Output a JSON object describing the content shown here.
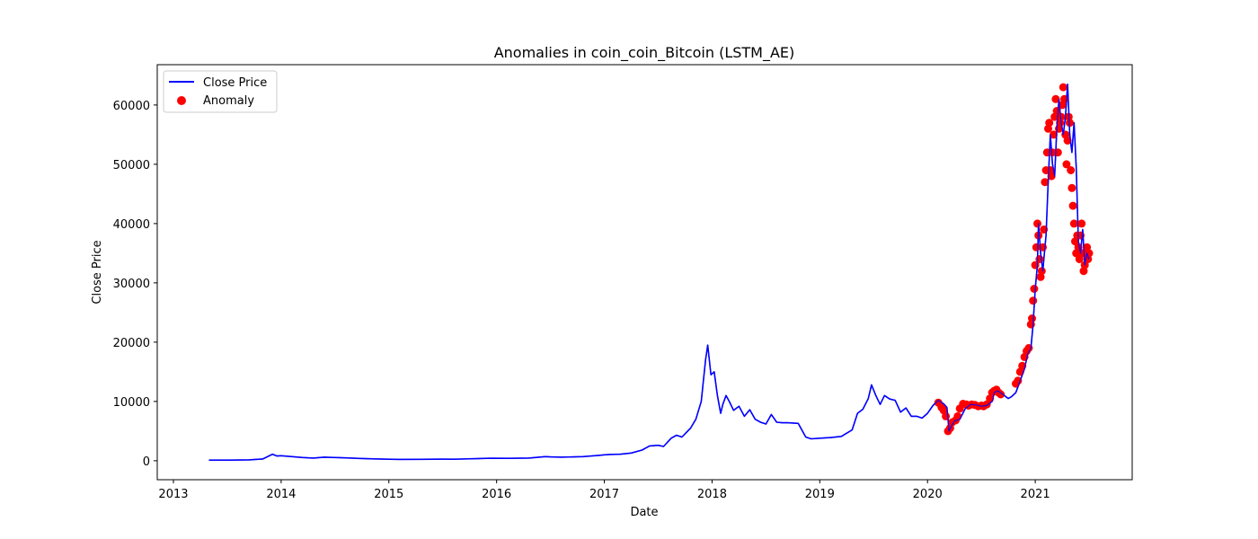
{
  "chart_data": {
    "type": "line",
    "title": "Anomalies in coin_coin_Bitcoin (LSTM_AE)",
    "xlabel": "Date",
    "ylabel": "Close Price",
    "xlim": [
      2012.85,
      2021.9
    ],
    "ylim": [
      -3200,
      66800
    ],
    "xticks": [
      2013,
      2014,
      2015,
      2016,
      2017,
      2018,
      2019,
      2020,
      2021
    ],
    "yticks": [
      0,
      10000,
      20000,
      30000,
      40000,
      50000,
      60000
    ],
    "grid": false,
    "legend": {
      "placement": "top-left",
      "entries": [
        {
          "label": "Close Price",
          "type": "line",
          "color": "#0000ff"
        },
        {
          "label": "Anomaly",
          "type": "marker",
          "color": "#ff0000"
        }
      ]
    },
    "series": [
      {
        "name": "Close Price",
        "type": "line",
        "color": "#0000ff",
        "x": [
          2013.33,
          2013.5,
          2013.7,
          2013.83,
          2013.92,
          2013.96,
          2014.0,
          2014.1,
          2014.2,
          2014.3,
          2014.4,
          2014.5,
          2014.6,
          2014.75,
          2014.9,
          2015.0,
          2015.1,
          2015.3,
          2015.5,
          2015.6,
          2015.8,
          2015.95,
          2016.1,
          2016.3,
          2016.45,
          2016.5,
          2016.6,
          2016.8,
          2016.95,
          2017.0,
          2017.05,
          2017.15,
          2017.25,
          2017.35,
          2017.42,
          2017.5,
          2017.55,
          2017.62,
          2017.67,
          2017.72,
          2017.8,
          2017.85,
          2017.9,
          2017.94,
          2017.96,
          2017.99,
          2018.02,
          2018.05,
          2018.08,
          2018.1,
          2018.13,
          2018.16,
          2018.2,
          2018.25,
          2018.3,
          2018.35,
          2018.4,
          2018.45,
          2018.5,
          2018.55,
          2018.6,
          2018.65,
          2018.7,
          2018.8,
          2018.87,
          2018.92,
          2019.0,
          2019.1,
          2019.2,
          2019.3,
          2019.35,
          2019.4,
          2019.45,
          2019.48,
          2019.52,
          2019.56,
          2019.6,
          2019.65,
          2019.7,
          2019.75,
          2019.8,
          2019.85,
          2019.9,
          2019.95,
          2020.0,
          2020.05,
          2020.1,
          2020.15,
          2020.18,
          2020.2,
          2020.22,
          2020.25,
          2020.3,
          2020.35,
          2020.4,
          2020.45,
          2020.5,
          2020.55,
          2020.6,
          2020.62,
          2020.65,
          2020.7,
          2020.75,
          2020.78,
          2020.82,
          2020.86,
          2020.9,
          2020.93,
          2020.96,
          2020.98,
          2021.0,
          2021.02,
          2021.03,
          2021.05,
          2021.07,
          2021.1,
          2021.12,
          2021.14,
          2021.16,
          2021.18,
          2021.2,
          2021.22,
          2021.24,
          2021.26,
          2021.28,
          2021.3,
          2021.32,
          2021.34,
          2021.36,
          2021.38,
          2021.4,
          2021.42,
          2021.44,
          2021.46,
          2021.48,
          2021.5
        ],
        "y": [
          100,
          100,
          150,
          300,
          1100,
          800,
          850,
          700,
          550,
          450,
          600,
          550,
          480,
          380,
          300,
          250,
          230,
          240,
          270,
          250,
          350,
          420,
          400,
          450,
          700,
          650,
          600,
          700,
          900,
          1000,
          1050,
          1100,
          1300,
          1800,
          2500,
          2600,
          2400,
          3800,
          4300,
          4000,
          5500,
          7000,
          10000,
          17000,
          19500,
          14500,
          15000,
          11000,
          8000,
          9500,
          11000,
          10000,
          8500,
          9200,
          7500,
          8600,
          7000,
          6500,
          6200,
          7800,
          6500,
          6400,
          6400,
          6300,
          4000,
          3700,
          3800,
          3900,
          4100,
          5200,
          8000,
          8700,
          10500,
          12800,
          11000,
          9500,
          11000,
          10400,
          10200,
          8200,
          8900,
          7500,
          7500,
          7200,
          8000,
          9300,
          10200,
          9600,
          9000,
          5000,
          5800,
          6700,
          7000,
          8800,
          9500,
          9400,
          9200,
          9300,
          10000,
          11500,
          11800,
          11200,
          10500,
          10800,
          11500,
          13500,
          15500,
          18000,
          19000,
          23000,
          29000,
          33000,
          40000,
          35000,
          32000,
          38000,
          47000,
          55000,
          50000,
          48000,
          56000,
          61000,
          57000,
          55000,
          58000,
          63500,
          55000,
          52000,
          57000,
          49500,
          37000,
          35000,
          39000,
          33000,
          35000,
          34000
        ]
      },
      {
        "name": "Anomaly",
        "type": "scatter",
        "color": "#ff0000",
        "x": [
          2020.1,
          2020.13,
          2020.15,
          2020.17,
          2020.19,
          2020.21,
          2020.23,
          2020.26,
          2020.28,
          2020.3,
          2020.33,
          2020.36,
          2020.38,
          2020.41,
          2020.44,
          2020.47,
          2020.5,
          2020.52,
          2020.55,
          2020.58,
          2020.6,
          2020.62,
          2020.64,
          2020.66,
          2020.68,
          2020.82,
          2020.84,
          2020.86,
          2020.88,
          2020.9,
          2020.92,
          2020.94,
          2020.96,
          2020.97,
          2020.98,
          2020.99,
          2021.0,
          2021.01,
          2021.02,
          2021.03,
          2021.04,
          2021.05,
          2021.06,
          2021.07,
          2021.08,
          2021.09,
          2021.1,
          2021.11,
          2021.12,
          2021.13,
          2021.14,
          2021.15,
          2021.16,
          2021.17,
          2021.18,
          2021.19,
          2021.2,
          2021.21,
          2021.22,
          2021.23,
          2021.24,
          2021.25,
          2021.26,
          2021.27,
          2021.28,
          2021.29,
          2021.3,
          2021.31,
          2021.32,
          2021.33,
          2021.34,
          2021.35,
          2021.36,
          2021.37,
          2021.38,
          2021.39,
          2021.4,
          2021.41,
          2021.42,
          2021.43,
          2021.44,
          2021.45,
          2021.46,
          2021.47,
          2021.48,
          2021.49,
          2021.5
        ],
        "y": [
          9800,
          9000,
          8500,
          7500,
          5000,
          5500,
          6500,
          6800,
          7500,
          8800,
          9600,
          9500,
          9300,
          9500,
          9400,
          9200,
          9300,
          9200,
          9500,
          10500,
          11500,
          11800,
          12000,
          11500,
          11200,
          13000,
          13500,
          15000,
          16000,
          17500,
          18500,
          19000,
          23000,
          24000,
          27000,
          29000,
          33000,
          36000,
          40000,
          38000,
          34000,
          31000,
          32000,
          36000,
          39000,
          47000,
          49000,
          52000,
          56000,
          57000,
          49000,
          48000,
          52000,
          55000,
          58000,
          61000,
          59000,
          52000,
          56000,
          57000,
          58000,
          60000,
          63000,
          61000,
          55000,
          50000,
          54000,
          58000,
          57000,
          49000,
          46000,
          43000,
          40000,
          37000,
          35000,
          38000,
          36000,
          34000,
          38000,
          40000,
          35000,
          32000,
          33000,
          35000,
          36000,
          34000,
          35000
        ]
      }
    ]
  }
}
